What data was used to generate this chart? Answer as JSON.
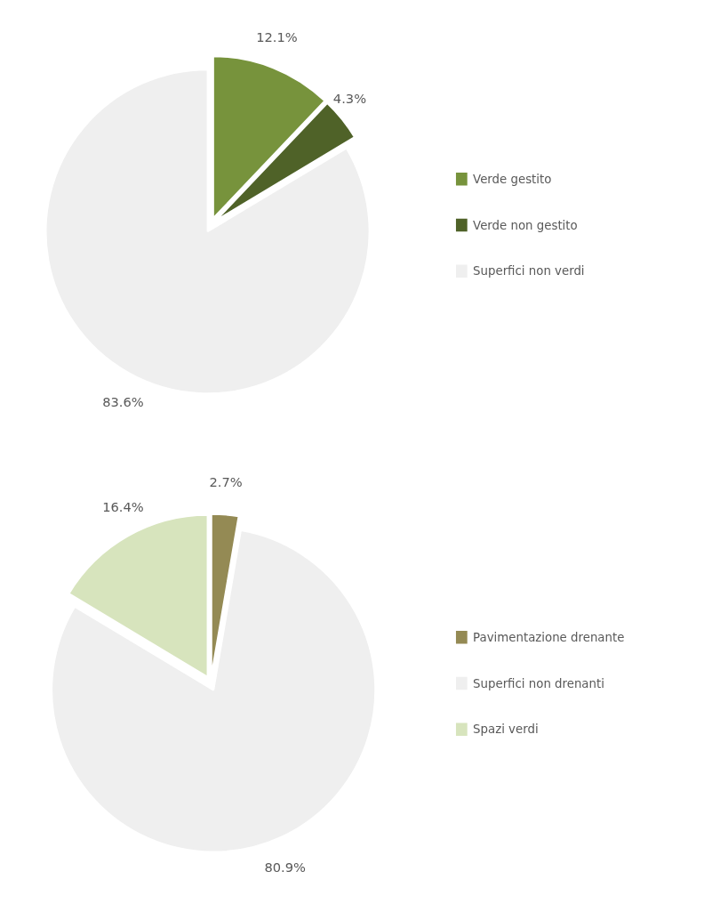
{
  "chart_data": [
    {
      "type": "pie",
      "categories": [
        "Verde gestito",
        "Verde non gestito",
        "Superfici non verdi"
      ],
      "values": [
        12.1,
        4.3,
        83.6
      ],
      "colors": [
        "#77933c",
        "#4f6228",
        "#efefef"
      ],
      "value_labels": [
        "12.1%",
        "4.3%",
        "83.6%"
      ],
      "legend": "right"
    },
    {
      "type": "pie",
      "categories": [
        "Pavimentazione drenante",
        "Superfici non drenanti",
        "Spazi verdi"
      ],
      "values": [
        2.7,
        80.9,
        16.4
      ],
      "colors": [
        "#948a54",
        "#efefef",
        "#d7e4bd"
      ],
      "value_labels": [
        "2.7%",
        "80.9%",
        "16.4%"
      ],
      "legend": "right"
    }
  ]
}
